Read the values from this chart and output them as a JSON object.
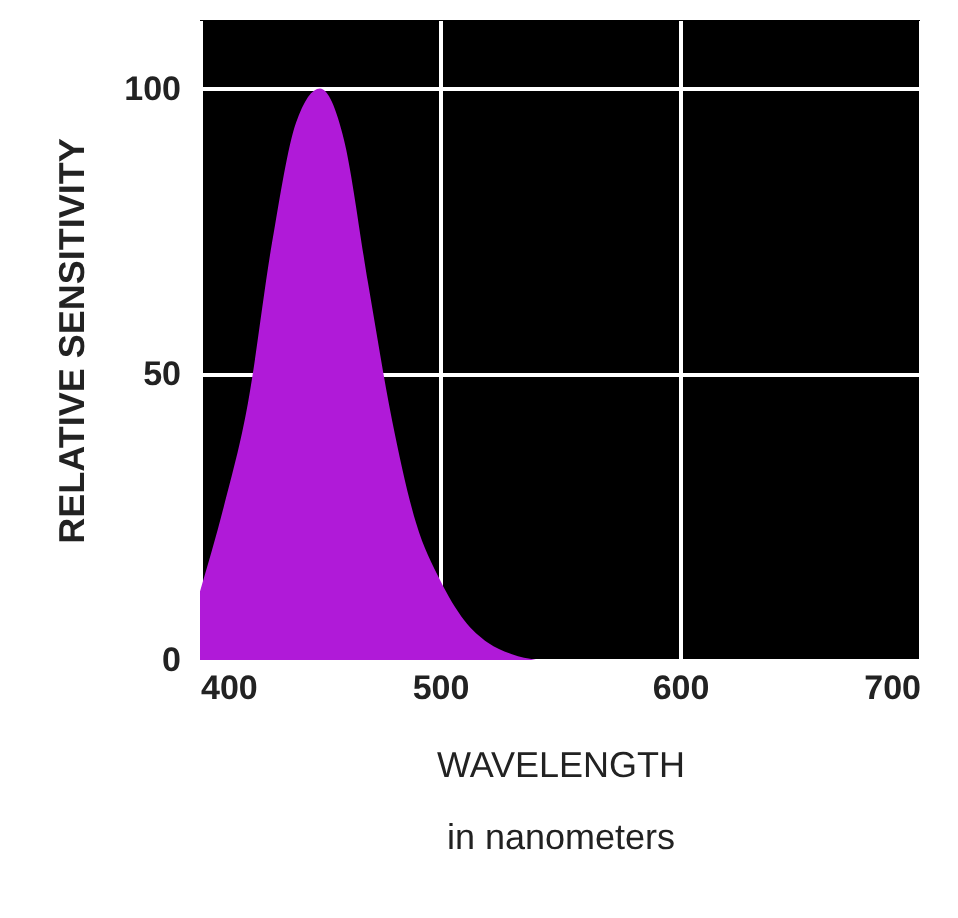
{
  "chart_data": {
    "type": "area",
    "xlabel": "WAVELENGTH",
    "ylabel": "RELATIVE SENSITIVITY",
    "annotations": [
      "in nanometers"
    ],
    "xlim": [
      400,
      700
    ],
    "ylim": [
      0,
      112
    ],
    "xticks": [
      400,
      500,
      600,
      700
    ],
    "yticks": [
      0,
      50,
      100
    ],
    "grid": true,
    "series": [
      {
        "color": "#b01ad8",
        "x": [
          400,
          410,
          420,
          430,
          440,
          450,
          460,
          470,
          480,
          490,
          500,
          510,
          520,
          530,
          540
        ],
        "values": [
          12,
          27,
          45,
          73,
          94,
          100,
          91,
          66,
          42,
          24,
          14,
          7,
          3,
          1,
          0
        ]
      }
    ]
  }
}
